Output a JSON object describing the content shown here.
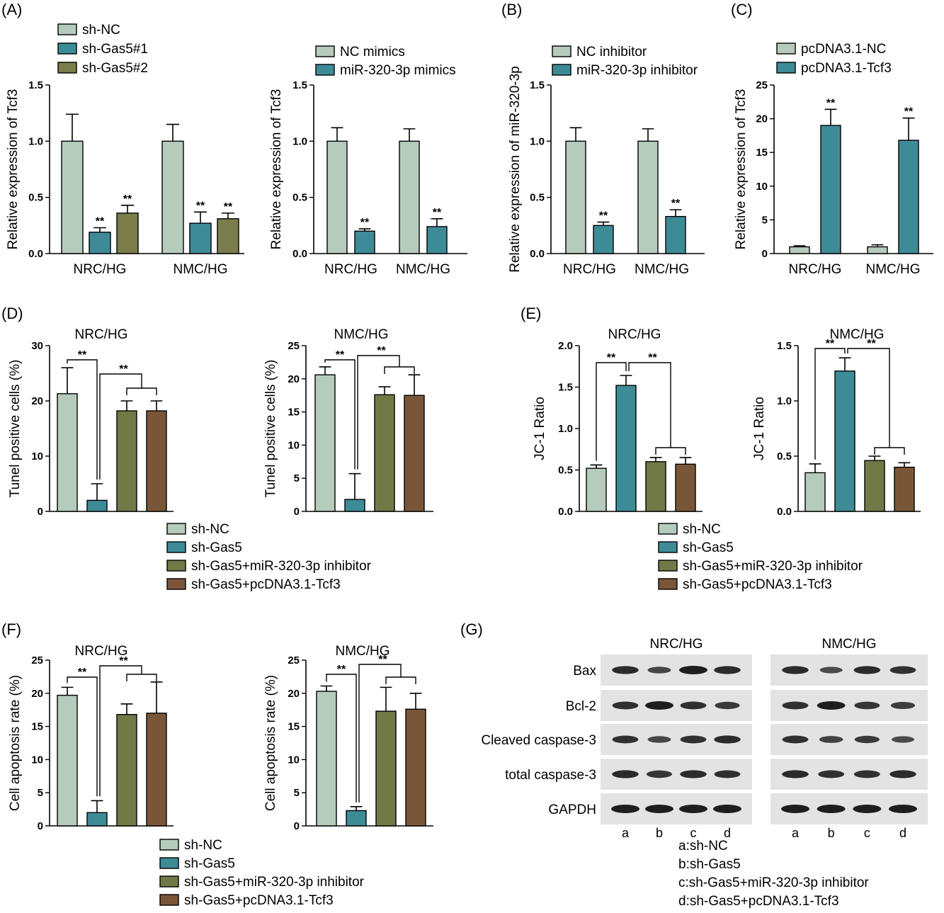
{
  "colors": {
    "sh_nc": "#b5cbbc",
    "sh_gas5": "#3e8b98",
    "sh_gas5_2": "#7a7d4b",
    "miR_inhibitor_group": "#717a47",
    "pcDNA_tcf3_group": "#7a5638",
    "blot_bg": "#e3e3e3",
    "band": "#1e1e1e"
  },
  "panel_labels": [
    "(A)",
    "(B)",
    "(C)",
    "(D)",
    "(E)",
    "(F)",
    "(G)"
  ],
  "chart_data": [
    {
      "id": "A1",
      "type": "bar",
      "categories": [
        "NRC/HG",
        "NMC/HG"
      ],
      "ylabel": "Relative expression of Tcf3",
      "ylim": [
        0,
        1.5
      ],
      "yticks": [
        "0.0",
        "0.5",
        "1.0",
        "1.5"
      ],
      "legend": [
        "sh-NC",
        "sh-Gas5#1",
        "sh-Gas5#2"
      ],
      "series": [
        {
          "name": "sh-NC",
          "values": [
            1.0,
            1.0
          ],
          "errors": [
            0.24,
            0.15
          ],
          "sig": [
            "",
            ""
          ]
        },
        {
          "name": "sh-Gas5#1",
          "values": [
            0.19,
            0.27
          ],
          "errors": [
            0.04,
            0.1
          ],
          "sig": [
            "**",
            "**"
          ]
        },
        {
          "name": "sh-Gas5#2",
          "values": [
            0.36,
            0.31
          ],
          "errors": [
            0.07,
            0.05
          ],
          "sig": [
            "**",
            "**"
          ]
        }
      ]
    },
    {
      "id": "A2",
      "type": "bar",
      "categories": [
        "NRC/HG",
        "NMC/HG"
      ],
      "ylabel": "Relative expression of Tcf3",
      "ylim": [
        0,
        1.5
      ],
      "yticks": [
        "0.0",
        "0.5",
        "1.0",
        "1.5"
      ],
      "legend": [
        "NC mimics",
        "miR-320-3p mimics"
      ],
      "series": [
        {
          "name": "NC mimics",
          "values": [
            1.0,
            1.0
          ],
          "errors": [
            0.12,
            0.11
          ],
          "sig": [
            "",
            ""
          ]
        },
        {
          "name": "miR-320-3p mimics",
          "values": [
            0.2,
            0.24
          ],
          "errors": [
            0.02,
            0.07
          ],
          "sig": [
            "**",
            "**"
          ]
        }
      ]
    },
    {
      "id": "B",
      "type": "bar",
      "categories": [
        "NRC/HG",
        "NMC/HG"
      ],
      "ylabel": "Relative expression of miR-320-3p",
      "ylim": [
        0,
        1.5
      ],
      "yticks": [
        "0.0",
        "0.5",
        "1.0",
        "1.5"
      ],
      "legend": [
        "NC inhibitor",
        "miR-320-3p inhibitor"
      ],
      "series": [
        {
          "name": "NC inhibitor",
          "values": [
            1.0,
            1.0
          ],
          "errors": [
            0.12,
            0.11
          ],
          "sig": [
            "",
            ""
          ]
        },
        {
          "name": "miR-320-3p inhibitor",
          "values": [
            0.25,
            0.33
          ],
          "errors": [
            0.03,
            0.06
          ],
          "sig": [
            "**",
            "**"
          ]
        }
      ]
    },
    {
      "id": "C",
      "type": "bar",
      "categories": [
        "NRC/HG",
        "NMC/HG"
      ],
      "ylabel": "Relative  expression of Tcf3",
      "ylim": [
        0,
        25
      ],
      "yticks": [
        "0",
        "5",
        "10",
        "15",
        "20",
        "25"
      ],
      "legend": [
        "pcDNA3.1-NC",
        "pcDNA3.1-Tcf3"
      ],
      "series": [
        {
          "name": "pcDNA3.1-NC",
          "values": [
            1.0,
            1.0
          ],
          "errors": [
            0.15,
            0.3
          ],
          "sig": [
            "",
            ""
          ]
        },
        {
          "name": "pcDNA3.1-Tcf3",
          "values": [
            19.0,
            16.8
          ],
          "errors": [
            2.4,
            3.3
          ],
          "sig": [
            "**",
            "**"
          ]
        }
      ]
    },
    {
      "id": "D1",
      "type": "bar",
      "title": "NRC/HG",
      "ylabel": "Tunel positive cells (%)",
      "ylim": [
        0,
        30
      ],
      "yticks": [
        "0",
        "10",
        "20",
        "30"
      ],
      "categories": [
        "sh-NC",
        "sh-Gas5",
        "sh-Gas5+miR-320-3p inhibitor",
        "sh-Gas5+pcDNA3.1-Tcf3"
      ],
      "values": [
        21.3,
        2.0,
        18.2,
        18.2
      ],
      "errors": [
        4.7,
        3.0,
        1.8,
        1.8
      ],
      "brackets": [
        "**",
        "**"
      ]
    },
    {
      "id": "D2",
      "type": "bar",
      "title": "NMC/HG",
      "ylabel": "Tunel positive cells (%)",
      "ylim": [
        0,
        25
      ],
      "yticks": [
        "0",
        "5",
        "10",
        "15",
        "20",
        "25"
      ],
      "categories": [
        "sh-NC",
        "sh-Gas5",
        "sh-Gas5+miR-320-3p inhibitor",
        "sh-Gas5+pcDNA3.1-Tcf3"
      ],
      "values": [
        20.6,
        1.8,
        17.6,
        17.5
      ],
      "errors": [
        1.2,
        3.9,
        1.2,
        3.1
      ],
      "brackets": [
        "**",
        "**"
      ]
    },
    {
      "id": "E1",
      "type": "bar",
      "title": "NRC/HG",
      "ylabel": "JC-1 Ratio",
      "ylim": [
        0,
        2.0
      ],
      "yticks": [
        "0.0",
        "0.5",
        "1.0",
        "1.5",
        "2.0"
      ],
      "categories": [
        "sh-NC",
        "sh-Gas5",
        "sh-Gas5+miR-320-3p inhibitor",
        "sh-Gas5+pcDNA3.1-Tcf3"
      ],
      "values": [
        0.52,
        1.52,
        0.6,
        0.57
      ],
      "errors": [
        0.04,
        0.12,
        0.05,
        0.08
      ],
      "brackets": [
        "**",
        "**"
      ]
    },
    {
      "id": "E2",
      "type": "bar",
      "title": "NMC/HG",
      "ylabel": "JC-1 Ratio",
      "ylim": [
        0,
        1.5
      ],
      "yticks": [
        "0.0",
        "0.5",
        "1.0",
        "1.5"
      ],
      "categories": [
        "sh-NC",
        "sh-Gas5",
        "sh-Gas5+miR-320-3p inhibitor",
        "sh-Gas5+pcDNA3.1-Tcf3"
      ],
      "values": [
        0.35,
        1.27,
        0.46,
        0.4
      ],
      "errors": [
        0.08,
        0.12,
        0.04,
        0.04
      ],
      "brackets": [
        "**",
        "**"
      ]
    },
    {
      "id": "F1",
      "type": "bar",
      "title": "NRC/HG",
      "ylabel": "Cell apoptosis rate (%)",
      "ylim": [
        0,
        25
      ],
      "yticks": [
        "0",
        "5",
        "10",
        "15",
        "20",
        "25"
      ],
      "categories": [
        "sh-NC",
        "sh-Gas5",
        "sh-Gas5+miR-320-3p inhibitor",
        "sh-Gas5+pcDNA3.1-Tcf3"
      ],
      "values": [
        19.7,
        2.0,
        16.8,
        17.0
      ],
      "errors": [
        1.2,
        1.8,
        1.6,
        4.7
      ],
      "brackets": [
        "**",
        "**"
      ]
    },
    {
      "id": "F2",
      "type": "bar",
      "title": "NMC/HG",
      "ylabel": "Cell apoptosis rate (%)",
      "ylim": [
        0,
        25
      ],
      "yticks": [
        "0",
        "5",
        "10",
        "15",
        "20",
        "25"
      ],
      "categories": [
        "sh-NC",
        "sh-Gas5",
        "sh-Gas5+miR-320-3p inhibitor",
        "sh-Gas5+pcDNA3.1-Tcf3"
      ],
      "values": [
        20.3,
        2.3,
        17.3,
        17.6
      ],
      "errors": [
        0.8,
        0.6,
        3.6,
        2.4
      ],
      "brackets": [
        "**",
        "**"
      ]
    }
  ],
  "legend_bottom": [
    "sh-NC",
    "sh-Gas5",
    "sh-Gas5+miR-320-3p inhibitor",
    "sh-Gas5+pcDNA3.1-Tcf3"
  ],
  "western_blot": {
    "groups": [
      "NRC/HG",
      "NMC/HG"
    ],
    "rows": [
      {
        "label": "Bax",
        "intensity": [
          [
            0.85,
            0.55,
            1.0,
            0.85
          ],
          [
            0.85,
            0.5,
            0.85,
            0.8
          ]
        ]
      },
      {
        "label": "Bcl-2",
        "intensity": [
          [
            0.8,
            1.0,
            0.8,
            0.7
          ],
          [
            0.8,
            1.0,
            0.75,
            0.65
          ]
        ]
      },
      {
        "label": "Cleaved caspase-3",
        "intensity": [
          [
            0.8,
            0.55,
            0.8,
            0.85
          ],
          [
            0.8,
            0.6,
            0.7,
            0.5
          ]
        ]
      },
      {
        "label": "total caspase-3",
        "intensity": [
          [
            0.85,
            0.75,
            0.85,
            0.8
          ],
          [
            0.85,
            0.8,
            0.8,
            0.85
          ]
        ]
      },
      {
        "label": "GAPDH",
        "intensity": [
          [
            1.0,
            1.0,
            1.0,
            1.0
          ],
          [
            1.0,
            1.0,
            1.0,
            1.0
          ]
        ]
      }
    ],
    "lanes": [
      "a",
      "b",
      "c",
      "d"
    ],
    "key": [
      "a:sh-NC",
      "b:sh-Gas5",
      "c:sh-Gas5+miR-320-3p inhibitor",
      "d:sh-Gas5+pcDNA3.1-Tcf3"
    ]
  }
}
